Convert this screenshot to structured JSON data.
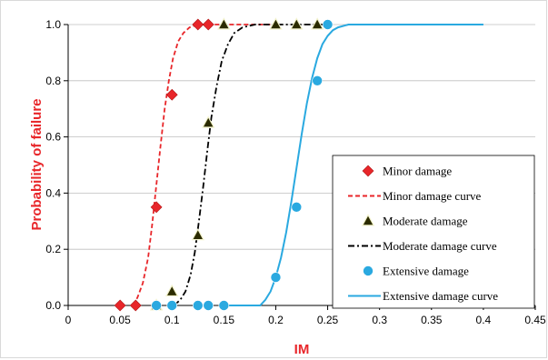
{
  "chart_data": {
    "type": "scatter",
    "xlabel": "IM",
    "ylabel": "Probability of failure",
    "xlim": [
      0,
      0.45
    ],
    "ylim": [
      0,
      1.0
    ],
    "x_ticks": [
      "0",
      "0.05",
      "0.1",
      "0.15",
      "0.2",
      "0.25",
      "0.3",
      "0.35",
      "0.4",
      "0.45"
    ],
    "y_ticks": [
      "0.0",
      "0.2",
      "0.4",
      "0.6",
      "0.8",
      "1.0"
    ],
    "grid": "horizontal",
    "legend_position": "bottom-right",
    "series": [
      {
        "name": "Minor damage",
        "kind": "points",
        "marker": "diamond",
        "color": "#e8262a",
        "x": [
          0.05,
          0.065,
          0.085,
          0.1,
          0.125,
          0.135
        ],
        "y": [
          0.0,
          0.0,
          0.35,
          0.75,
          1.0,
          1.0
        ]
      },
      {
        "name": "Minor damage curve",
        "kind": "line",
        "dash": "dashed",
        "color": "#e8262a",
        "x": [
          0.063,
          0.067,
          0.072,
          0.077,
          0.081,
          0.085,
          0.089,
          0.093,
          0.097,
          0.101,
          0.106,
          0.111,
          0.117,
          0.125,
          0.135,
          0.15,
          0.2
        ],
        "y": [
          0.0,
          0.03,
          0.08,
          0.17,
          0.29,
          0.43,
          0.57,
          0.7,
          0.8,
          0.88,
          0.94,
          0.97,
          0.99,
          1.0,
          1.0,
          1.0,
          1.0
        ]
      },
      {
        "name": "Moderate damage",
        "kind": "points",
        "marker": "triangle",
        "color": "#2b2b00",
        "x": [
          0.085,
          0.1,
          0.125,
          0.135,
          0.15,
          0.2,
          0.22,
          0.24
        ],
        "y": [
          0.0,
          0.05,
          0.25,
          0.65,
          1.0,
          1.0,
          1.0,
          1.0
        ]
      },
      {
        "name": "Moderate damage curve",
        "kind": "line",
        "dash": "dashdot",
        "color": "#000000",
        "x": [
          0.102,
          0.108,
          0.113,
          0.118,
          0.122,
          0.126,
          0.13,
          0.134,
          0.138,
          0.143,
          0.148,
          0.154,
          0.16,
          0.168,
          0.18,
          0.2,
          0.25
        ],
        "y": [
          0.0,
          0.02,
          0.05,
          0.11,
          0.19,
          0.3,
          0.42,
          0.55,
          0.67,
          0.78,
          0.87,
          0.93,
          0.97,
          0.99,
          1.0,
          1.0,
          1.0
        ]
      },
      {
        "name": "Extensive damage",
        "kind": "points",
        "marker": "circle",
        "color": "#2aa9e0",
        "x": [
          0.085,
          0.1,
          0.125,
          0.135,
          0.15,
          0.2,
          0.22,
          0.24,
          0.25
        ],
        "y": [
          0.0,
          0.0,
          0.0,
          0.0,
          0.0,
          0.1,
          0.35,
          0.8,
          1.0
        ]
      },
      {
        "name": "Extensive damage curve",
        "kind": "line",
        "dash": "solid",
        "color": "#2aa9e0",
        "x": [
          0.15,
          0.185,
          0.19,
          0.195,
          0.2,
          0.205,
          0.21,
          0.215,
          0.22,
          0.225,
          0.23,
          0.235,
          0.24,
          0.245,
          0.25,
          0.255,
          0.26,
          0.27,
          0.3,
          0.35,
          0.4
        ],
        "y": [
          0.0,
          0.0,
          0.02,
          0.05,
          0.1,
          0.17,
          0.26,
          0.37,
          0.49,
          0.61,
          0.72,
          0.81,
          0.88,
          0.93,
          0.96,
          0.98,
          0.99,
          1.0,
          1.0,
          1.0,
          1.0
        ]
      }
    ]
  }
}
